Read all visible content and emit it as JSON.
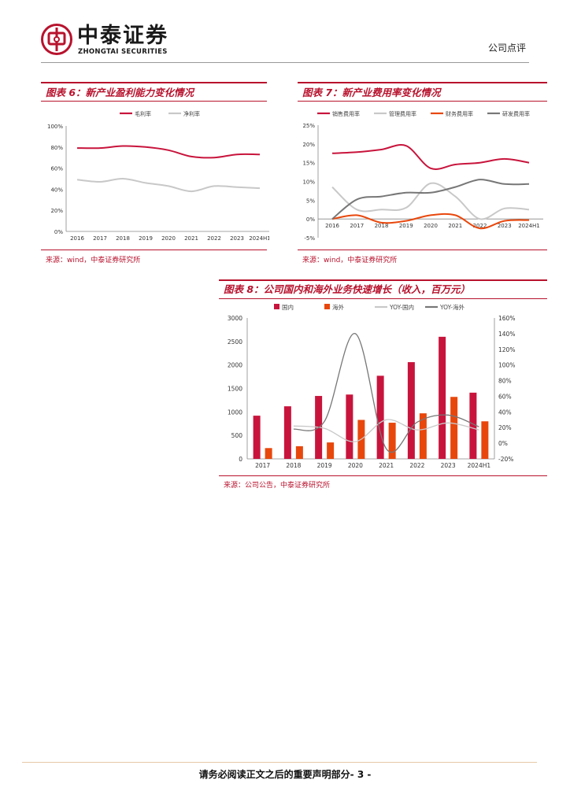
{
  "header": {
    "logo_cn": "中泰证券",
    "logo_en": "ZHONGTAI SECURITIES",
    "doc_type": "公司点评",
    "brand_color": "#b8122d"
  },
  "panels": [
    {
      "title": "图表 6：新产业盈利能力变化情况",
      "source": "来源：wind，中泰证券研究所"
    },
    {
      "title": "图表 7：新产业费用率变化情况",
      "source": "来源：wind，中泰证券研究所"
    },
    {
      "title": "图表 8：公司国内和海外业务快速增长（收入，百万元）",
      "source": "来源：公司公告，中泰证券研究所"
    }
  ],
  "chart_data": [
    {
      "type": "line",
      "x": [
        "2016",
        "2017",
        "2018",
        "2019",
        "2020",
        "2021",
        "2022",
        "2023",
        "2024H1"
      ],
      "y_ticks": [
        "0%",
        "20%",
        "40%",
        "60%",
        "80%",
        "100%"
      ],
      "ylim": [
        0,
        100
      ],
      "grid": false,
      "legend_position": "top",
      "series": [
        {
          "name": "毛利率",
          "color": "#c8143c",
          "values": [
            79,
            79,
            81,
            80,
            77,
            71,
            70,
            73,
            73
          ]
        },
        {
          "name": "净利率",
          "color": "#c8c8c8",
          "values": [
            49,
            47,
            50,
            46,
            43,
            38,
            43,
            42,
            41
          ]
        }
      ]
    },
    {
      "type": "line",
      "x": [
        "2016",
        "2017",
        "2018",
        "2019",
        "2020",
        "2021",
        "2022",
        "2023",
        "2024H1"
      ],
      "y_ticks": [
        "-5%",
        "0%",
        "5%",
        "10%",
        "15%",
        "20%",
        "25%"
      ],
      "ylim": [
        -5,
        25
      ],
      "grid": false,
      "legend_position": "top",
      "series": [
        {
          "name": "销售费用率",
          "color": "#c8143c",
          "values": [
            17.5,
            17.8,
            18.5,
            19.5,
            13.5,
            14.5,
            15,
            16,
            15
          ]
        },
        {
          "name": "管理费用率",
          "color": "#c8c8c8",
          "values": [
            8.5,
            2.5,
            2.5,
            3,
            9.5,
            6,
            0,
            2.8,
            2.5
          ]
        },
        {
          "name": "财务费用率",
          "color": "#e8470c",
          "values": [
            0,
            1,
            -1,
            -0.5,
            1,
            1,
            -2.5,
            -0.5,
            -0.3
          ]
        },
        {
          "name": "研发费用率",
          "color": "#777777",
          "values": [
            0,
            5.2,
            6,
            7,
            7,
            8.5,
            10.5,
            9.3,
            9.3
          ]
        }
      ]
    },
    {
      "type": "bar",
      "categories": [
        "2017",
        "2018",
        "2019",
        "2020",
        "2021",
        "2022",
        "2023",
        "2024H1"
      ],
      "y_ticks": [
        "0",
        "500",
        "1000",
        "1500",
        "2000",
        "2500",
        "3000"
      ],
      "ylim": [
        0,
        3000
      ],
      "y2_ticks": [
        "-20%",
        "0%",
        "20%",
        "40%",
        "60%",
        "80%",
        "100%",
        "120%",
        "140%",
        "160%"
      ],
      "y2lim": [
        -20,
        160
      ],
      "grid": false,
      "legend_position": "top",
      "series": [
        {
          "name": "国内",
          "kind": "bar",
          "color": "#c8143c",
          "values": [
            920,
            1120,
            1340,
            1370,
            1770,
            2060,
            2600,
            1410
          ]
        },
        {
          "name": "海外",
          "kind": "bar",
          "color": "#e8470c",
          "values": [
            230,
            270,
            350,
            830,
            770,
            970,
            1320,
            800
          ]
        },
        {
          "name": "YOY-国内",
          "kind": "line",
          "axis": "right",
          "color": "#c8c8c8",
          "values": [
            null,
            22,
            19,
            2,
            30,
            17,
            26,
            17
          ]
        },
        {
          "name": "YOY-海外",
          "kind": "line",
          "axis": "right",
          "color": "#777777",
          "values": [
            null,
            18,
            28,
            140,
            -7,
            27,
            36,
            21
          ]
        }
      ]
    }
  ],
  "footer": {
    "text": "请务必阅读正文之后的重要声明部分",
    "page": "- 3 -"
  }
}
